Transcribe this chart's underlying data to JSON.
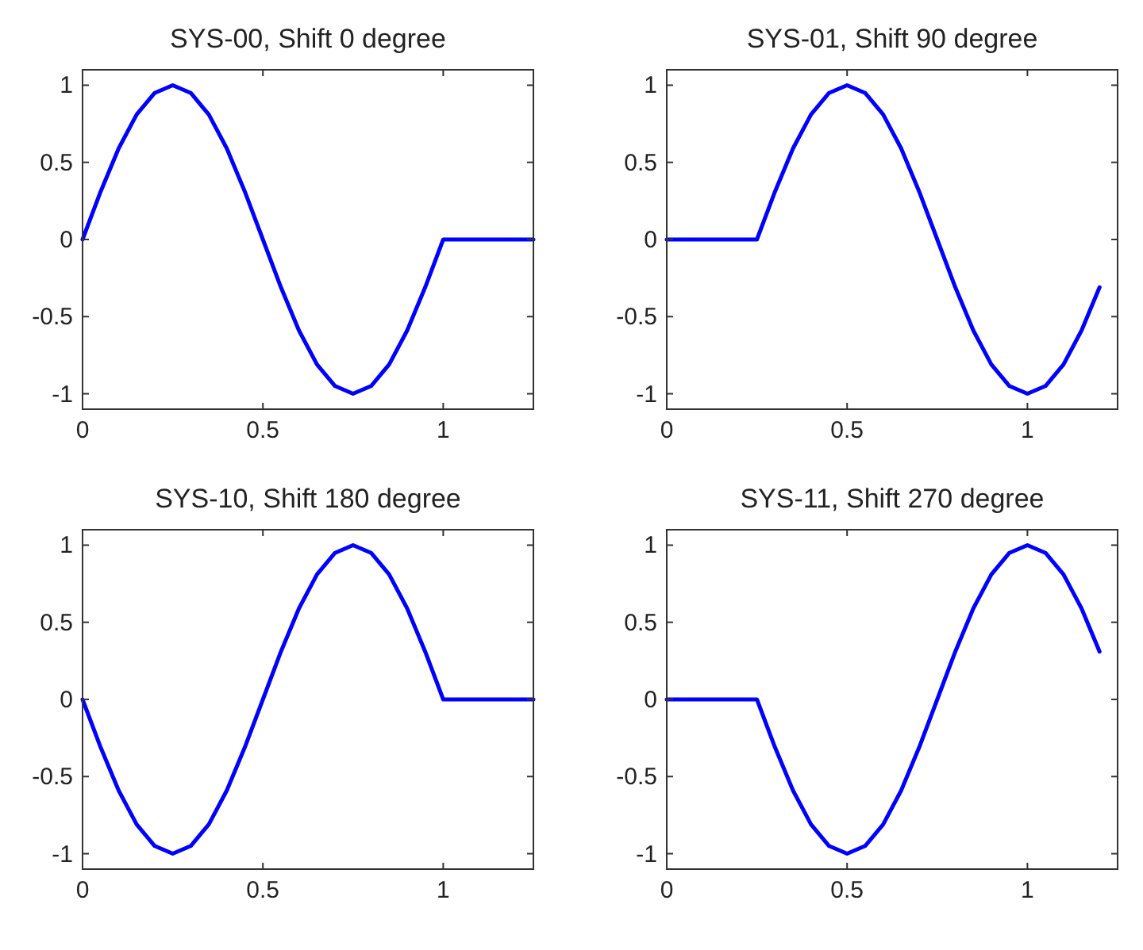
{
  "chart_data": [
    {
      "type": "line",
      "title": "SYS-00, Shift 0 degree",
      "x": [
        0,
        0.05,
        0.1,
        0.15,
        0.2,
        0.25,
        0.3,
        0.35,
        0.4,
        0.45,
        0.5,
        0.55,
        0.6,
        0.65,
        0.7,
        0.75,
        0.8,
        0.85,
        0.9,
        0.95,
        1,
        1.05,
        1.1,
        1.15,
        1.2,
        1.25
      ],
      "series": [
        {
          "color": "#0000ff",
          "values": [
            0,
            0.31,
            0.59,
            0.81,
            0.95,
            1,
            0.95,
            0.81,
            0.59,
            0.31,
            0,
            -0.31,
            -0.59,
            -0.81,
            -0.95,
            -1,
            -0.95,
            -0.81,
            -0.59,
            -0.31,
            0,
            0,
            0,
            0,
            0,
            0
          ]
        }
      ],
      "xlim": [
        0,
        1.25
      ],
      "ylim": [
        -1.1,
        1.1
      ],
      "xticks": [
        0,
        0.5,
        1
      ],
      "yticks": [
        -1,
        -0.5,
        0,
        0.5,
        1
      ]
    },
    {
      "type": "line",
      "title": "SYS-01, Shift 90 degree",
      "x": [
        0,
        0.05,
        0.1,
        0.15,
        0.2,
        0.25,
        0.3,
        0.35,
        0.4,
        0.45,
        0.5,
        0.55,
        0.6,
        0.65,
        0.7,
        0.75,
        0.8,
        0.85,
        0.9,
        0.95,
        1,
        1.05,
        1.1,
        1.15,
        1.2
      ],
      "series": [
        {
          "color": "#0000ff",
          "values": [
            0,
            0,
            0,
            0,
            0,
            0,
            0.31,
            0.59,
            0.81,
            0.95,
            1,
            0.95,
            0.81,
            0.59,
            0.31,
            0,
            -0.31,
            -0.59,
            -0.81,
            -0.95,
            -1,
            -0.95,
            -0.81,
            -0.59,
            -0.31
          ]
        }
      ],
      "xlim": [
        0,
        1.25
      ],
      "ylim": [
        -1.1,
        1.1
      ],
      "xticks": [
        0,
        0.5,
        1
      ],
      "yticks": [
        -1,
        -0.5,
        0,
        0.5,
        1
      ]
    },
    {
      "type": "line",
      "title": "SYS-10, Shift 180 degree",
      "x": [
        0,
        0.05,
        0.1,
        0.15,
        0.2,
        0.25,
        0.3,
        0.35,
        0.4,
        0.45,
        0.5,
        0.55,
        0.6,
        0.65,
        0.7,
        0.75,
        0.8,
        0.85,
        0.9,
        0.95,
        1,
        1.05,
        1.1,
        1.15,
        1.2,
        1.25
      ],
      "series": [
        {
          "color": "#0000ff",
          "values": [
            0,
            -0.31,
            -0.59,
            -0.81,
            -0.95,
            -1,
            -0.95,
            -0.81,
            -0.59,
            -0.31,
            0,
            0.31,
            0.59,
            0.81,
            0.95,
            1,
            0.95,
            0.81,
            0.59,
            0.31,
            0,
            0,
            0,
            0,
            0,
            0
          ]
        }
      ],
      "xlim": [
        0,
        1.25
      ],
      "ylim": [
        -1.1,
        1.1
      ],
      "xticks": [
        0,
        0.5,
        1
      ],
      "yticks": [
        -1,
        -0.5,
        0,
        0.5,
        1
      ]
    },
    {
      "type": "line",
      "title": "SYS-11, Shift 270 degree",
      "x": [
        0,
        0.05,
        0.1,
        0.15,
        0.2,
        0.25,
        0.3,
        0.35,
        0.4,
        0.45,
        0.5,
        0.55,
        0.6,
        0.65,
        0.7,
        0.75,
        0.8,
        0.85,
        0.9,
        0.95,
        1,
        1.05,
        1.1,
        1.15,
        1.2
      ],
      "series": [
        {
          "color": "#0000ff",
          "values": [
            0,
            0,
            0,
            0,
            0,
            0,
            -0.31,
            -0.59,
            -0.81,
            -0.95,
            -1,
            -0.95,
            -0.81,
            -0.59,
            -0.31,
            0,
            0.31,
            0.59,
            0.81,
            0.95,
            1,
            0.95,
            0.81,
            0.59,
            0.31
          ]
        }
      ],
      "xlim": [
        0,
        1.25
      ],
      "ylim": [
        -1.1,
        1.1
      ],
      "xticks": [
        0,
        0.5,
        1
      ],
      "yticks": [
        -1,
        -0.5,
        0,
        0.5,
        1
      ]
    }
  ]
}
